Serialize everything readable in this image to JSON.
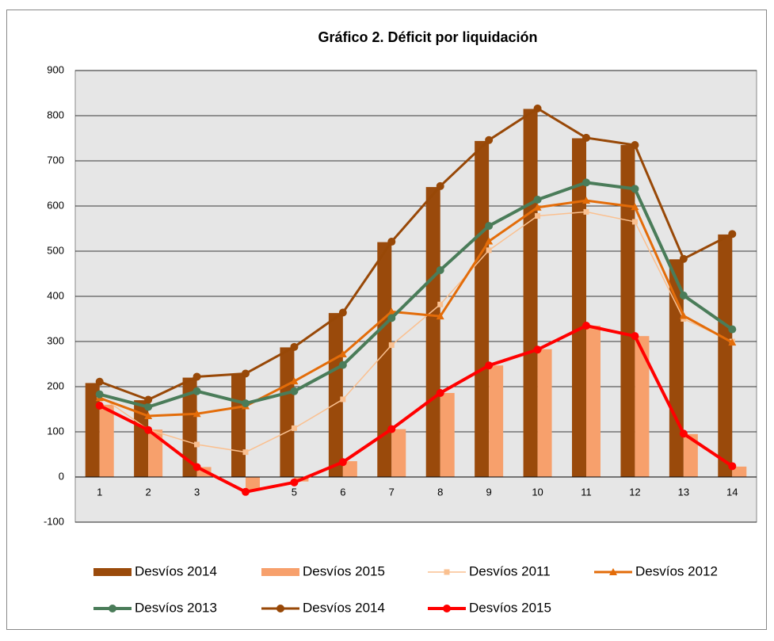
{
  "chart_data": {
    "type": "combo",
    "title": "Gráfico 2. Déficit por liquidación",
    "categories": [
      "1",
      "2",
      "3",
      "4",
      "5",
      "6",
      "7",
      "8",
      "9",
      "10",
      "11",
      "12",
      "13",
      "14"
    ],
    "ylim": [
      -100,
      900
    ],
    "yticks": [
      -100,
      0,
      100,
      200,
      300,
      400,
      500,
      600,
      700,
      800,
      900
    ],
    "grid": true,
    "series": [
      {
        "name": "Desvíos 2014",
        "type": "bar",
        "color": "#9a4a0b",
        "values": [
          208,
          170,
          220,
          228,
          287,
          363,
          520,
          642,
          744,
          815,
          750,
          735,
          482,
          537
        ]
      },
      {
        "name": "Desvíos 2015",
        "type": "bar",
        "color": "#f7a06c",
        "values": [
          160,
          105,
          22,
          -30,
          -10,
          35,
          106,
          186,
          247,
          283,
          335,
          312,
          95,
          23
        ]
      },
      {
        "name": "Desvíos 2011",
        "type": "line",
        "marker": "square",
        "color": "#fac090",
        "values": [
          180,
          105,
          72,
          55,
          108,
          172,
          292,
          382,
          502,
          578,
          587,
          565,
          350,
          300
        ]
      },
      {
        "name": "Desvíos 2012",
        "type": "line",
        "marker": "triangle",
        "color": "#e36c09",
        "values": [
          175,
          135,
          140,
          157,
          212,
          272,
          366,
          356,
          522,
          597,
          612,
          598,
          357,
          298
        ]
      },
      {
        "name": "Desvíos 2013",
        "type": "line",
        "marker": "circle",
        "color": "#4a7c59",
        "values": [
          183,
          155,
          190,
          163,
          190,
          248,
          352,
          458,
          556,
          614,
          652,
          638,
          402,
          327
        ]
      },
      {
        "name": "Desvíos 2014",
        "type": "line",
        "marker": "circle",
        "color": "#984807",
        "values": [
          211,
          171,
          222,
          229,
          288,
          364,
          521,
          644,
          746,
          816,
          751,
          735,
          483,
          538
        ]
      },
      {
        "name": "Desvíos 2015",
        "type": "line",
        "marker": "circle",
        "color": "#ff0000",
        "values": [
          158,
          104,
          22,
          -33,
          -12,
          33,
          106,
          186,
          247,
          282,
          335,
          312,
          96,
          24
        ]
      }
    ]
  }
}
